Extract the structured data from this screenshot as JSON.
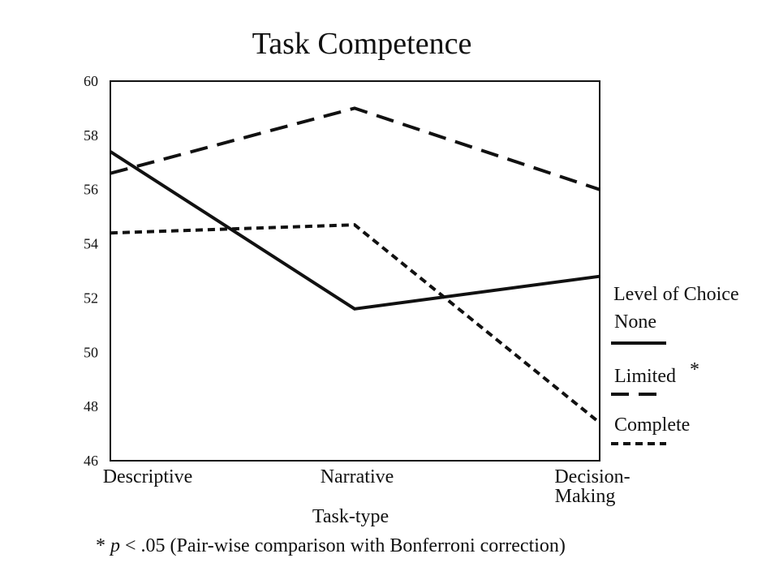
{
  "chart_data": {
    "type": "line",
    "title": "Task Competence",
    "categories": [
      "Descriptive",
      "Narrative",
      "Decision-Making"
    ],
    "category_lines": [
      [
        "Descriptive"
      ],
      [
        "Narrative"
      ],
      [
        "Decision-",
        "Making"
      ]
    ],
    "xlabel": "Task-type",
    "ylabel": "",
    "ylim": [
      46,
      60
    ],
    "yticks": [
      46,
      48,
      50,
      52,
      54,
      56,
      58,
      60
    ],
    "ytick_labels": [
      "46",
      "48",
      "50",
      "52",
      "54",
      "56",
      "58",
      "60"
    ],
    "grid": false,
    "legend_title": "Level of Choice",
    "legend_position": "right",
    "series": [
      {
        "name": "None",
        "values": [
          57.4,
          51.6,
          52.8
        ],
        "dash": "solid",
        "marker": ""
      },
      {
        "name": "Limited",
        "values": [
          56.6,
          59.0,
          56.0
        ],
        "dash": "long-dash",
        "marker": "*"
      },
      {
        "name": "Complete",
        "values": [
          54.4,
          54.7,
          47.4
        ],
        "dash": "short-dash",
        "marker": ""
      }
    ],
    "footnote": {
      "symbol": "*",
      "p": "p",
      "rest": " < .05 (Pair-wise comparison with Bonferroni correction)"
    },
    "colors": {
      "line": "#111111",
      "background": "#ffffff"
    }
  }
}
